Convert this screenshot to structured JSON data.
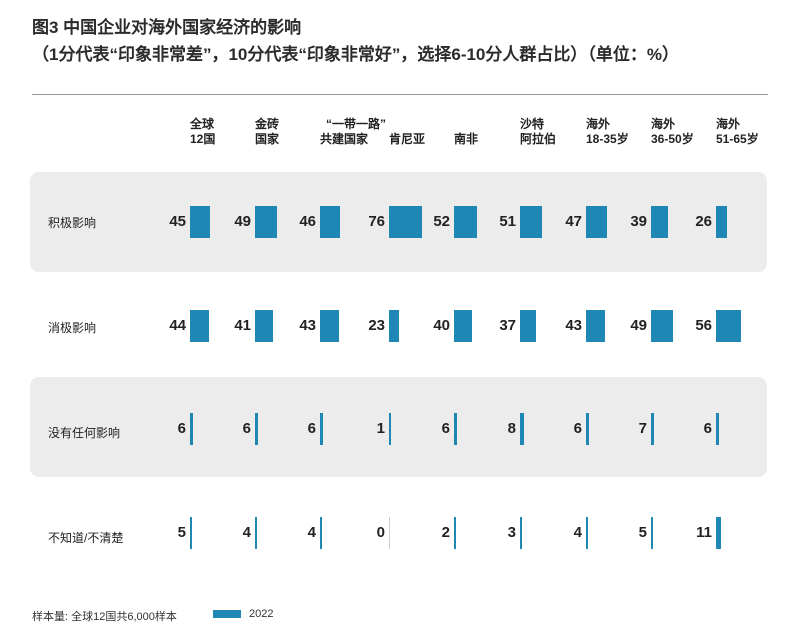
{
  "chart_data": {
    "type": "table",
    "title": "图3  中国企业对海外国家经济的影响",
    "subtitle": "（1分代表“印象非常差”，10分代表“印象非常好”，选择6-10分人群占比）（单位：%）",
    "columns": [
      [
        "全球",
        "12国"
      ],
      [
        "金砖",
        "国家"
      ],
      [
        "“一带一路”",
        "共建国家"
      ],
      [
        "",
        "肯尼亚"
      ],
      [
        "",
        "南非"
      ],
      [
        "沙特",
        "阿拉伯"
      ],
      [
        "海外",
        "18-35岁"
      ],
      [
        "海外",
        "36-50岁"
      ],
      [
        "海外",
        "51-65岁"
      ]
    ],
    "rows": [
      {
        "label": "积极影响",
        "values": [
          45,
          49,
          46,
          76,
          52,
          51,
          47,
          39,
          26
        ]
      },
      {
        "label": "消极影响",
        "values": [
          44,
          41,
          43,
          23,
          40,
          37,
          43,
          49,
          56
        ]
      },
      {
        "label": "没有任何影响",
        "values": [
          6,
          6,
          6,
          1,
          6,
          8,
          6,
          7,
          6
        ]
      },
      {
        "label": "不知道/不清楚",
        "values": [
          5,
          4,
          4,
          0,
          2,
          3,
          4,
          5,
          11
        ]
      }
    ],
    "series": [
      {
        "name": "2022",
        "color": "#1f87b5"
      }
    ],
    "band_color": "#ececec"
  },
  "footer": {
    "note": "样本量: 全球12国共6,000样本",
    "legend_label": "2022"
  }
}
